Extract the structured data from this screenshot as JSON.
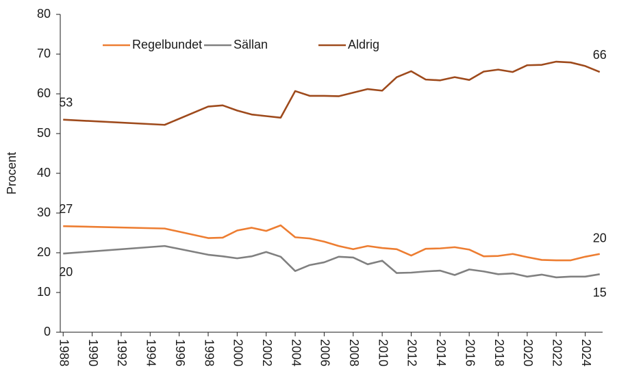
{
  "chart_data": {
    "type": "line",
    "ylabel": "Procent",
    "x": [
      1988,
      1995,
      1998,
      1999,
      2000,
      2001,
      2002,
      2003,
      2004,
      2005,
      2006,
      2007,
      2008,
      2009,
      2010,
      2011,
      2012,
      2013,
      2014,
      2015,
      2016,
      2017,
      2018,
      2019,
      2020,
      2021,
      2022,
      2023,
      2024,
      2025
    ],
    "series": [
      {
        "name": "Regelbundet",
        "color": "#ed7d31",
        "start_label": "27",
        "end_label": "20",
        "values": [
          26.7,
          26.1,
          23.7,
          23.8,
          25.6,
          26.3,
          25.5,
          26.9,
          23.9,
          23.6,
          22.8,
          21.7,
          20.9,
          21.7,
          21.2,
          20.9,
          19.3,
          21.0,
          21.1,
          21.4,
          20.8,
          19.1,
          19.2,
          19.7,
          18.9,
          18.2,
          18.1,
          18.1,
          19.0,
          19.7
        ]
      },
      {
        "name": "Sällan",
        "color": "#808080",
        "start_label": "20",
        "end_label": "15",
        "values": [
          19.8,
          21.7,
          19.5,
          19.1,
          18.6,
          19.1,
          20.2,
          19.0,
          15.4,
          16.9,
          17.6,
          19.0,
          18.8,
          17.1,
          18.0,
          14.9,
          15.0,
          15.3,
          15.5,
          14.4,
          15.8,
          15.3,
          14.6,
          14.8,
          14.0,
          14.5,
          13.8,
          14.0,
          14.0,
          14.6
        ]
      },
      {
        "name": "Aldrig",
        "color": "#9e4a1c",
        "start_label": "53",
        "end_label": "66",
        "values": [
          53.5,
          52.2,
          56.8,
          57.1,
          55.8,
          54.8,
          54.4,
          54.0,
          60.7,
          59.5,
          59.5,
          59.4,
          60.3,
          61.2,
          60.8,
          64.2,
          65.7,
          63.6,
          63.4,
          64.2,
          63.5,
          65.6,
          66.1,
          65.5,
          67.2,
          67.3,
          68.1,
          67.9,
          67.0,
          65.5
        ]
      }
    ],
    "xlim": [
      1987.8,
      2025.2
    ],
    "xticks": [
      1988,
      1990,
      1992,
      1994,
      1996,
      1998,
      2000,
      2002,
      2004,
      2006,
      2008,
      2010,
      2012,
      2014,
      2016,
      2018,
      2020,
      2022,
      2024
    ],
    "ylim": [
      0,
      80
    ],
    "yticks": [
      0,
      10,
      20,
      30,
      40,
      50,
      60,
      70,
      80
    ],
    "grid": false,
    "legend": "top"
  }
}
